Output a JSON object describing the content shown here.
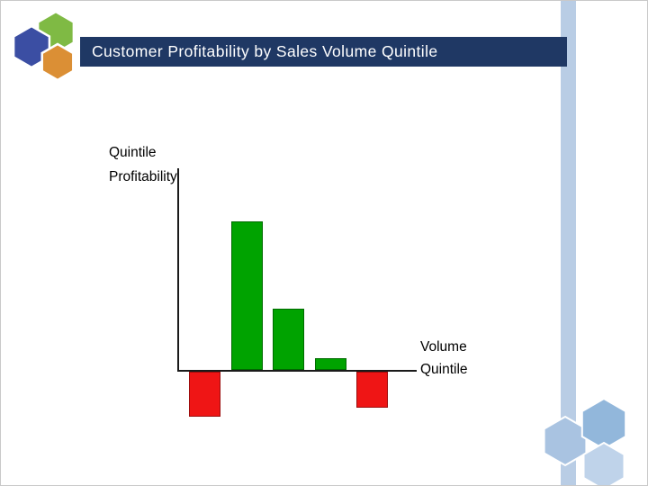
{
  "slide": {
    "title": "Customer Profitability by Sales Volume Quintile"
  },
  "colors": {
    "title_bar_bg": "#1F3864",
    "title_text": "#FFFFFF",
    "right_stripe": "#B9CDE5",
    "axis": "#1A1A1A",
    "positive_bar": "#00A300",
    "negative_bar": "#EF1515",
    "logo_hex_blue": "#3B4EA3",
    "logo_hex_green": "#7FBA44",
    "logo_hex_orange": "#DB8F35",
    "deco_hex_left": "#A9C3E1",
    "deco_hex_top_right": "#92B7DB",
    "deco_hex_bottom_right": "#BFD3EA"
  },
  "chart_data": {
    "type": "bar",
    "title": "Customer Profitability by Sales Volume Quintile",
    "ylabel": "Quintile Profitability",
    "xlabel": "Volume Quintile",
    "ylabel_lines": [
      "Quintile",
      "Profitability"
    ],
    "xlabel_lines": [
      "Volume",
      "Quintile"
    ],
    "values": [
      -30,
      100,
      41,
      8,
      -24
    ],
    "bar_count": 5,
    "ylim": [
      -45,
      135
    ],
    "grid": false,
    "legend": false,
    "x_tick_labels_visible": false,
    "y_tick_labels_visible": false,
    "positive_color": "#00A300",
    "negative_color": "#EF1515"
  }
}
